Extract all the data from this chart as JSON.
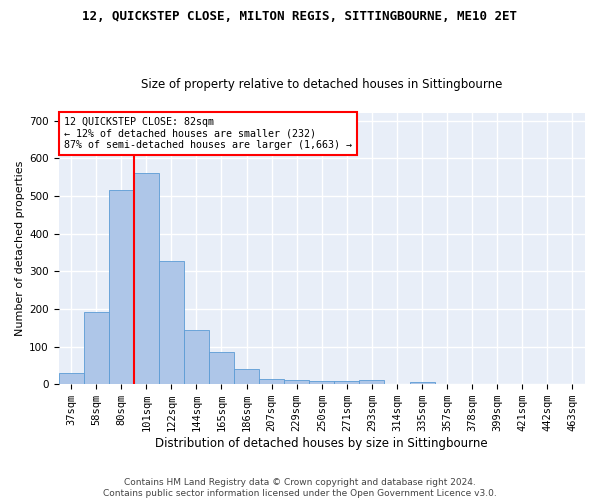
{
  "title": "12, QUICKSTEP CLOSE, MILTON REGIS, SITTINGBOURNE, ME10 2ET",
  "subtitle": "Size of property relative to detached houses in Sittingbourne",
  "xlabel": "Distribution of detached houses by size in Sittingbourne",
  "ylabel": "Number of detached properties",
  "footer1": "Contains HM Land Registry data © Crown copyright and database right 2024.",
  "footer2": "Contains public sector information licensed under the Open Government Licence v3.0.",
  "categories": [
    "37sqm",
    "58sqm",
    "80sqm",
    "101sqm",
    "122sqm",
    "144sqm",
    "165sqm",
    "186sqm",
    "207sqm",
    "229sqm",
    "250sqm",
    "271sqm",
    "293sqm",
    "314sqm",
    "335sqm",
    "357sqm",
    "378sqm",
    "399sqm",
    "421sqm",
    "442sqm",
    "463sqm"
  ],
  "values": [
    30,
    192,
    515,
    560,
    328,
    143,
    85,
    40,
    13,
    10,
    8,
    8,
    10,
    0,
    7,
    0,
    0,
    0,
    0,
    0,
    0
  ],
  "bar_color": "#aec6e8",
  "bar_edge_color": "#5b9bd5",
  "background_color": "#e8eef8",
  "grid_color": "#ffffff",
  "annotation_line1": "12 QUICKSTEP CLOSE: 82sqm",
  "annotation_line2": "← 12% of detached houses are smaller (232)",
  "annotation_line3": "87% of semi-detached houses are larger (1,663) →",
  "red_line_x": 2.5,
  "ylim": [
    0,
    720
  ],
  "yticks": [
    0,
    100,
    200,
    300,
    400,
    500,
    600,
    700
  ],
  "title_fontsize": 9,
  "subtitle_fontsize": 8.5,
  "ylabel_fontsize": 8,
  "xlabel_fontsize": 8.5,
  "tick_fontsize": 7.5,
  "footer_fontsize": 6.5
}
